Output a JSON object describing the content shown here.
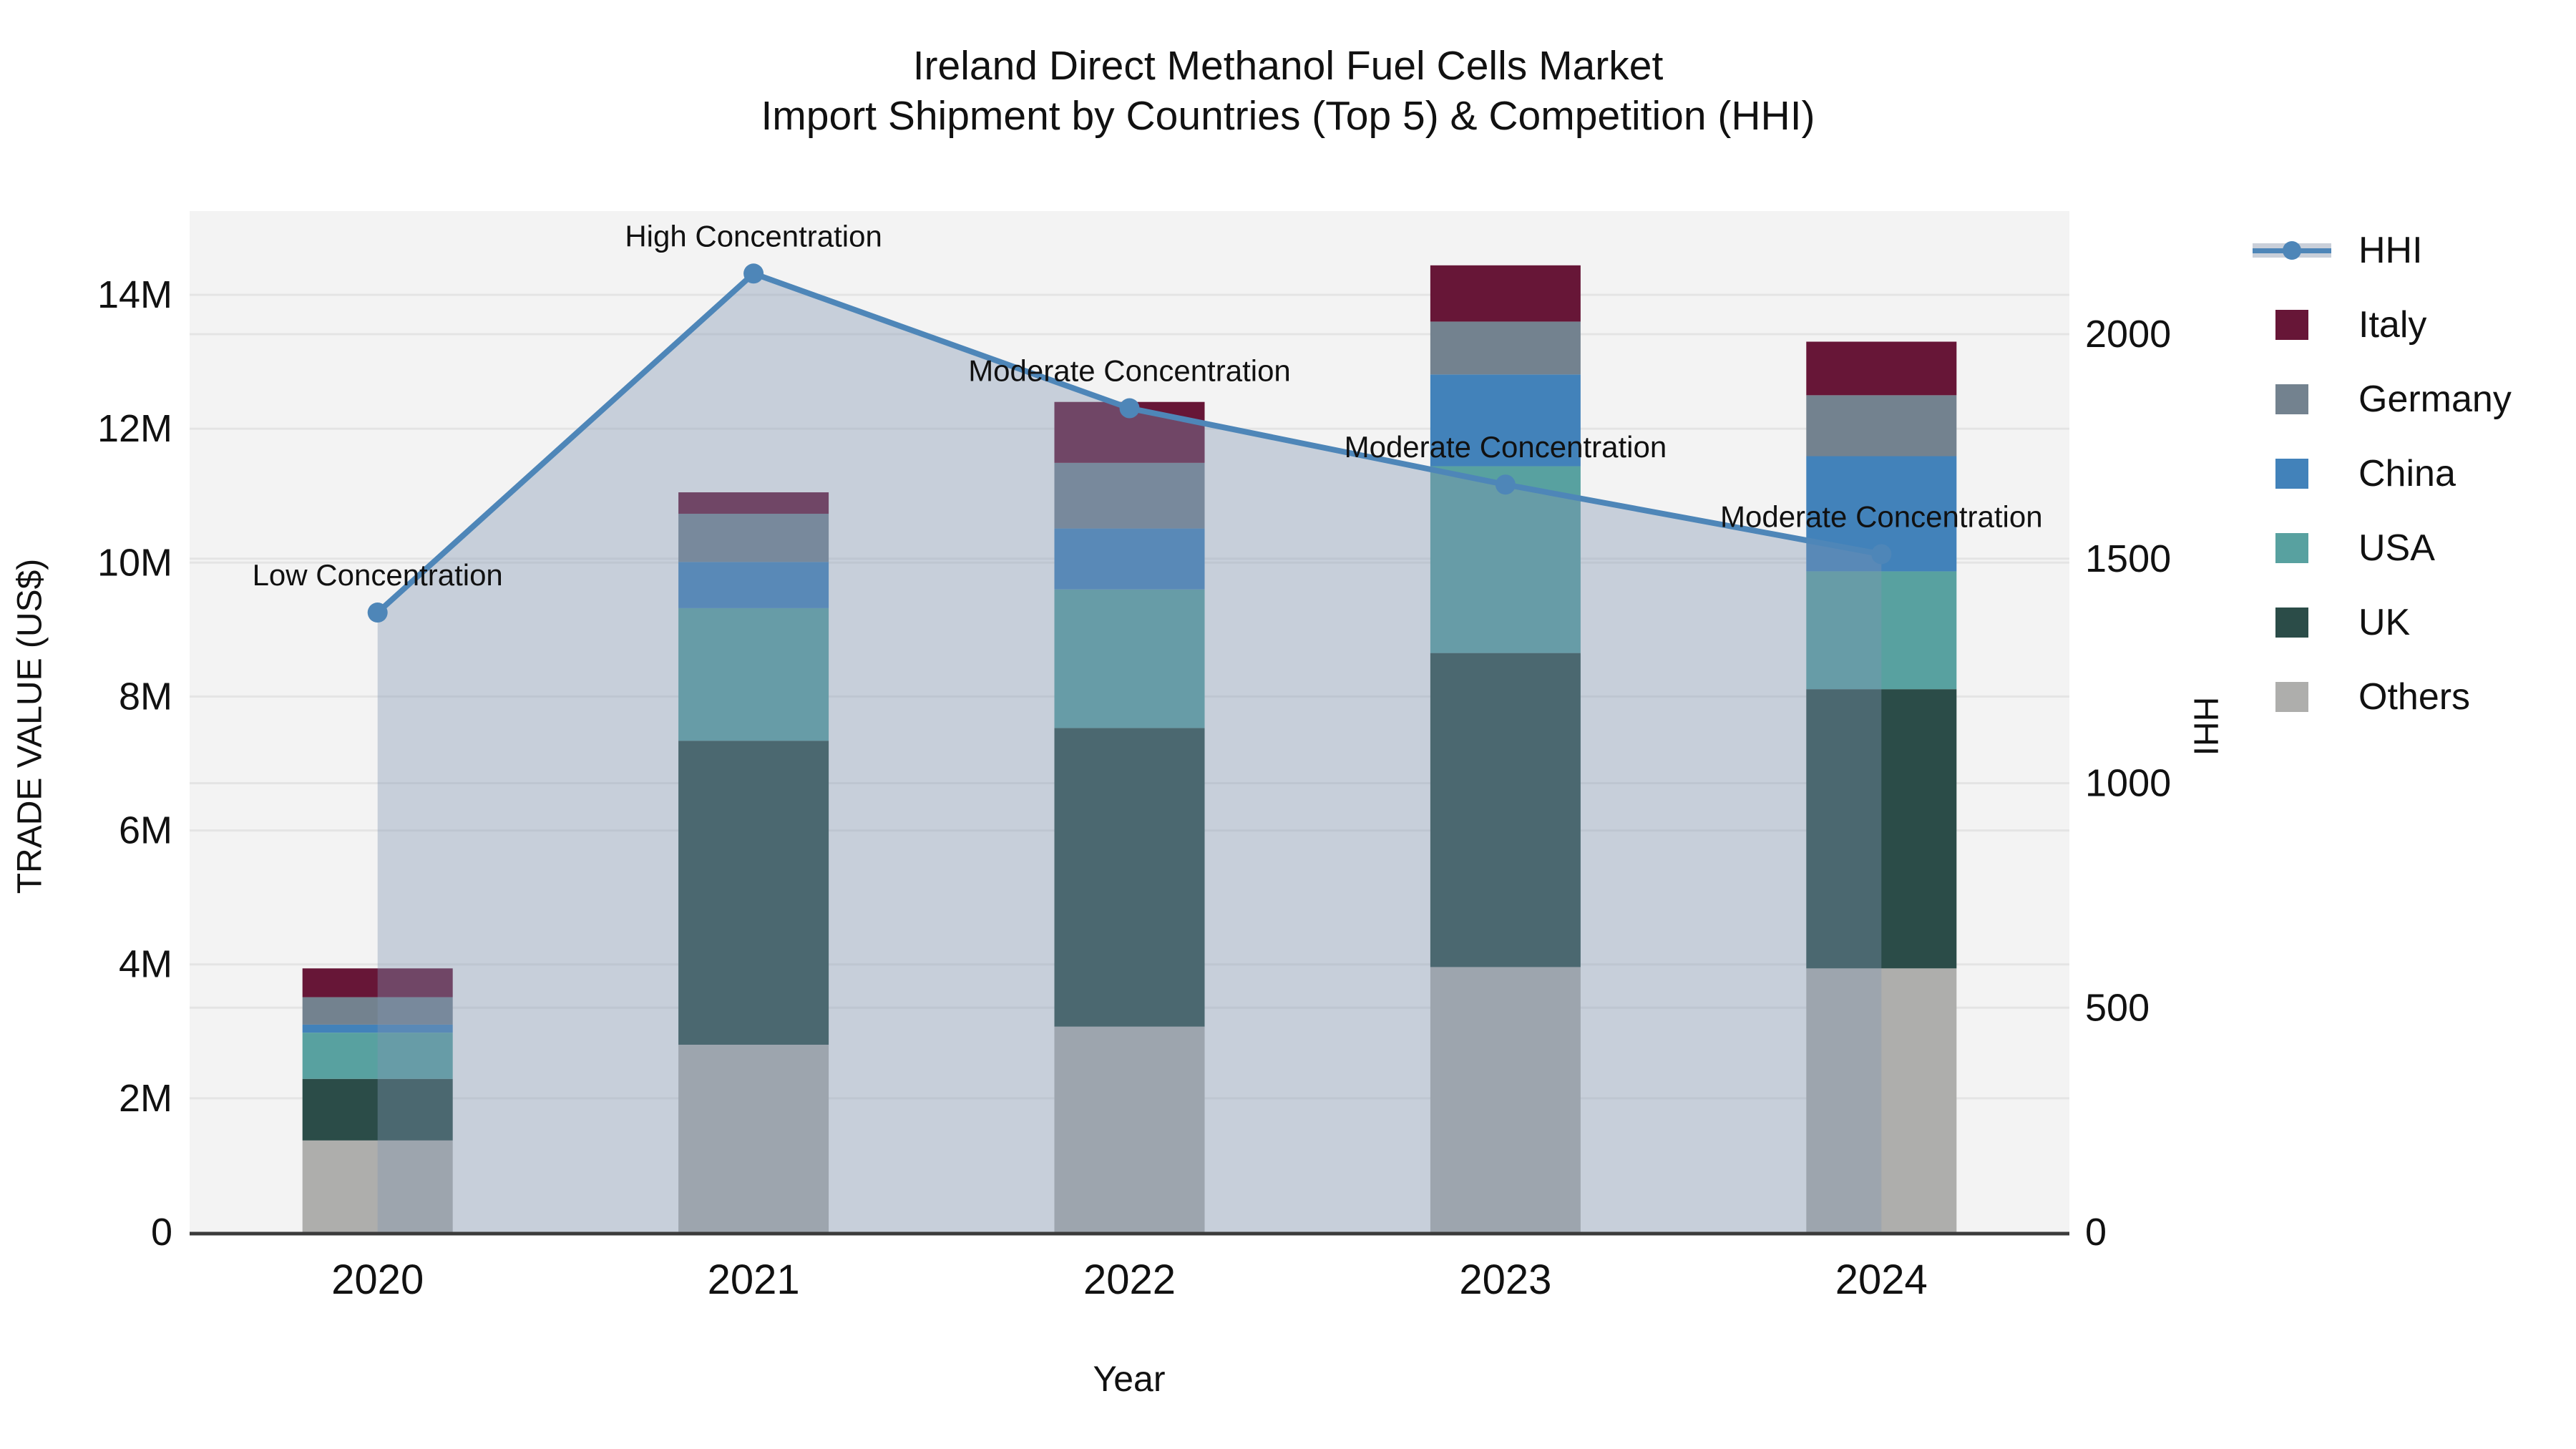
{
  "title": {
    "line1": "Ireland Direct Methanol Fuel Cells Market",
    "line2": "Import Shipment by Countries (Top 5) & Competition (HHI)"
  },
  "chart_data": {
    "type": "combo: stacked bar (trade value, left axis) + line with area (HHI, right axis)",
    "categories": [
      "2020",
      "2021",
      "2022",
      "2023",
      "2024"
    ],
    "value_unit": "millions US$",
    "series": [
      {
        "name": "Others",
        "color": "#AEAEAC",
        "values": [
          1.37,
          2.8,
          3.07,
          3.96,
          3.94
        ]
      },
      {
        "name": "UK",
        "color": "#2B4C48",
        "values": [
          0.92,
          4.54,
          4.46,
          4.69,
          4.17
        ]
      },
      {
        "name": "USA",
        "color": "#58A1A0",
        "values": [
          0.69,
          1.98,
          2.07,
          2.79,
          1.76
        ]
      },
      {
        "name": "China",
        "color": "#4282BA",
        "values": [
          0.12,
          0.69,
          0.91,
          1.37,
          1.72
        ]
      },
      {
        "name": "Germany",
        "color": "#73828F",
        "values": [
          0.41,
          0.72,
          0.98,
          0.79,
          0.91
        ]
      },
      {
        "name": "Italy",
        "color": "#671637",
        "values": [
          0.43,
          0.32,
          0.91,
          0.84,
          0.8
        ]
      }
    ],
    "stack_totals": [
      3.94,
      11.05,
      12.4,
      14.44,
      13.3
    ],
    "line_series": {
      "name": "HHI",
      "color": "#4E86B8",
      "area_color": "rgba(130,150,178,0.38)",
      "values": [
        1380,
        2135,
        1835,
        1665,
        1510
      ],
      "annotations": [
        "Low Concentration",
        "High Concentration",
        "Moderate Concentration",
        "Moderate Concentration",
        "Moderate Concentration"
      ]
    },
    "xlabel": "Year",
    "ylabel_left": "TRADE VALUE (US$)",
    "ylabel_right": "HHI",
    "y_left": {
      "tick_labels": [
        "0",
        "2M",
        "4M",
        "6M",
        "8M",
        "10M",
        "12M",
        "14M"
      ],
      "tick_values": [
        0,
        2,
        4,
        6,
        8,
        10,
        12,
        14
      ]
    },
    "y_right": {
      "tick_labels": [
        "0",
        "500",
        "1000",
        "1500",
        "2000"
      ],
      "tick_values": [
        0,
        500,
        1000,
        1500,
        2000
      ]
    },
    "legend_order": [
      "HHI",
      "Italy",
      "Germany",
      "China",
      "USA",
      "UK",
      "Others"
    ],
    "plot_background": "#F3F3F3",
    "grid_color": "#E4E4E4",
    "axis_line_color": "#3B3B3B"
  }
}
